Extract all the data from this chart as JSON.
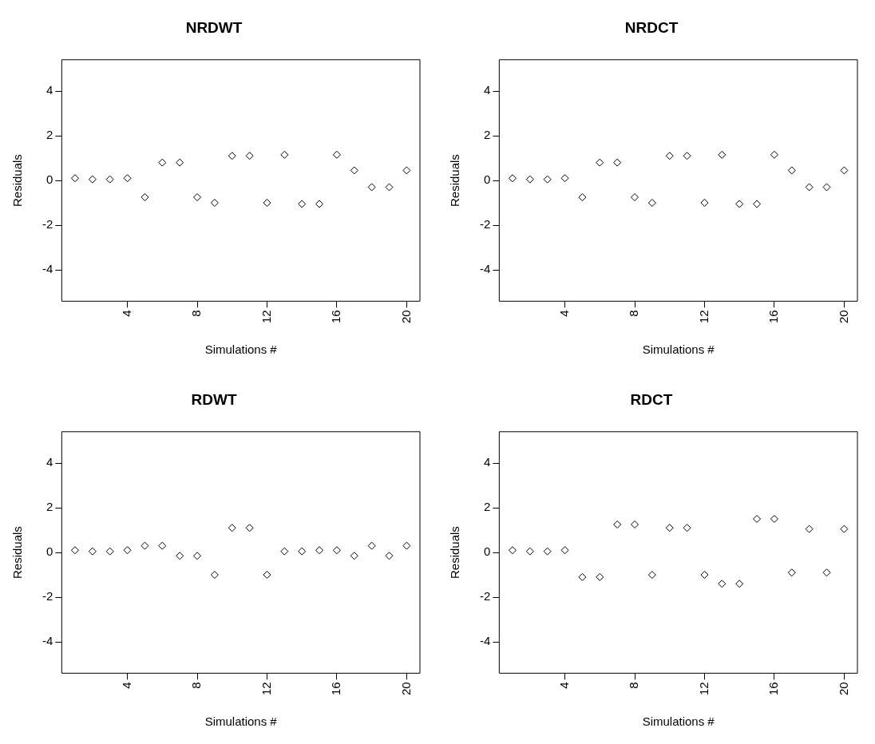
{
  "chart_data": [
    {
      "type": "scatter",
      "title": "NRDWT",
      "xlabel": "Simulations #",
      "ylabel": "Residuals",
      "marker": "diamond",
      "grid": false,
      "legend": false,
      "xlim": [
        0.24,
        20.76
      ],
      "ylim": [
        -5.4,
        5.4
      ],
      "xticks": [
        4,
        8,
        12,
        16,
        20
      ],
      "yticks": [
        -4,
        -2,
        0,
        2,
        4
      ],
      "x": [
        1,
        2,
        3,
        4,
        5,
        6,
        7,
        8,
        9,
        10,
        11,
        12,
        13,
        14,
        15,
        16,
        17,
        18,
        19,
        20
      ],
      "series": [
        {
          "color": "#000000",
          "values": [
            0.1,
            0.05,
            0.05,
            0.1,
            -0.75,
            0.8,
            0.8,
            -0.75,
            -1.0,
            1.1,
            1.1,
            -1.0,
            1.15,
            -1.05,
            -1.05,
            1.15,
            0.45,
            -0.3,
            -0.3,
            0.45
          ]
        }
      ]
    },
    {
      "type": "scatter",
      "title": "NRDCT",
      "xlabel": "Simulations #",
      "ylabel": "Residuals",
      "marker": "diamond",
      "grid": false,
      "legend": false,
      "xlim": [
        0.24,
        20.76
      ],
      "ylim": [
        -5.4,
        5.4
      ],
      "xticks": [
        4,
        8,
        12,
        16,
        20
      ],
      "yticks": [
        -4,
        -2,
        0,
        2,
        4
      ],
      "x": [
        1,
        2,
        3,
        4,
        5,
        6,
        7,
        8,
        9,
        10,
        11,
        12,
        13,
        14,
        15,
        16,
        17,
        18,
        19,
        20
      ],
      "series": [
        {
          "color": "#000000",
          "values": [
            0.1,
            0.05,
            0.05,
            0.1,
            -0.75,
            0.8,
            0.8,
            -0.75,
            -1.0,
            1.1,
            1.1,
            -1.0,
            1.15,
            -1.05,
            -1.05,
            1.15,
            0.45,
            -0.3,
            -0.3,
            0.45
          ]
        }
      ]
    },
    {
      "type": "scatter",
      "title": "RDWT",
      "xlabel": "Simulations #",
      "ylabel": "Residuals",
      "marker": "diamond",
      "grid": false,
      "legend": false,
      "xlim": [
        0.24,
        20.76
      ],
      "ylim": [
        -5.4,
        5.4
      ],
      "xticks": [
        4,
        8,
        12,
        16,
        20
      ],
      "yticks": [
        -4,
        -2,
        0,
        2,
        4
      ],
      "x": [
        1,
        2,
        3,
        4,
        5,
        6,
        7,
        8,
        9,
        10,
        11,
        12,
        13,
        14,
        15,
        16,
        17,
        18,
        19,
        20
      ],
      "series": [
        {
          "color": "#000000",
          "values": [
            0.1,
            0.05,
            0.05,
            0.1,
            0.3,
            0.3,
            -0.15,
            -0.15,
            -1.0,
            1.1,
            1.1,
            -1.0,
            0.05,
            0.05,
            0.1,
            0.1,
            -0.15,
            0.3,
            -0.15,
            0.3
          ]
        }
      ]
    },
    {
      "type": "scatter",
      "title": "RDCT",
      "xlabel": "Simulations #",
      "ylabel": "Residuals",
      "marker": "diamond",
      "grid": false,
      "legend": false,
      "xlim": [
        0.24,
        20.76
      ],
      "ylim": [
        -5.4,
        5.4
      ],
      "xticks": [
        4,
        8,
        12,
        16,
        20
      ],
      "yticks": [
        -4,
        -2,
        0,
        2,
        4
      ],
      "x": [
        1,
        2,
        3,
        4,
        5,
        6,
        7,
        8,
        9,
        10,
        11,
        12,
        13,
        14,
        15,
        16,
        17,
        18,
        19,
        20
      ],
      "series": [
        {
          "color": "#000000",
          "values": [
            0.1,
            0.05,
            0.05,
            0.1,
            -1.1,
            -1.1,
            1.25,
            1.25,
            -1.0,
            1.1,
            1.1,
            -1.0,
            -1.4,
            -1.4,
            1.5,
            1.5,
            -0.9,
            1.05,
            -0.9,
            1.05
          ]
        }
      ]
    }
  ]
}
